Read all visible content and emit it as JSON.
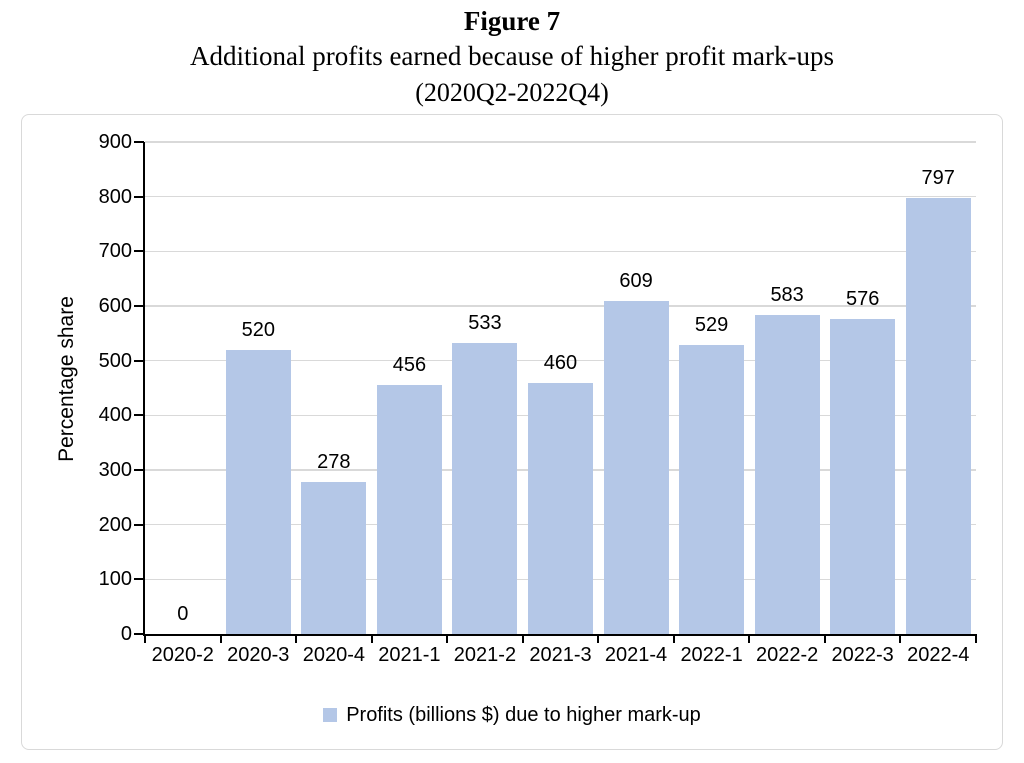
{
  "title": {
    "line1": "Figure 7",
    "line2": "Additional profits earned because of higher profit mark-ups",
    "line3": "(2020Q2-2022Q4)"
  },
  "chart_data": {
    "type": "bar",
    "title": "Figure 7 — Additional profits earned because of higher profit mark-ups (2020Q2-2022Q4)",
    "categories": [
      "2020-2",
      "2020-3",
      "2020-4",
      "2021-1",
      "2021-2",
      "2021-3",
      "2021-4",
      "2022-1",
      "2022-2",
      "2022-3",
      "2022-4"
    ],
    "values": [
      0,
      520,
      278,
      456,
      533,
      460,
      609,
      529,
      583,
      576,
      797
    ],
    "xlabel": "",
    "ylabel": "Percentage share",
    "ylim": [
      0,
      900
    ],
    "yticks": [
      0,
      100,
      200,
      300,
      400,
      500,
      600,
      700,
      800,
      900
    ],
    "grid": true,
    "data_labels_visible": true,
    "legend": {
      "position": "bottom",
      "label": "Profits (billions $) due to higher mark-up"
    },
    "colors": {
      "bar_fill": "#b4c7e7",
      "gridline": "#d9d9d9",
      "axis": "#000000",
      "text": "#000000",
      "frame_border": "#d9d9d9"
    }
  }
}
